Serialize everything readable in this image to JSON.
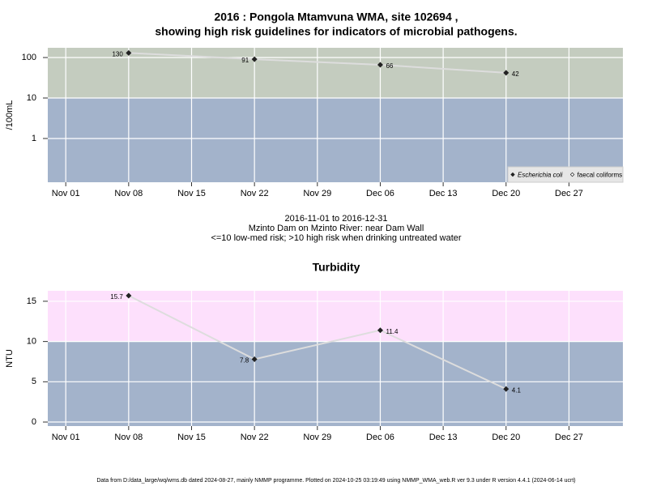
{
  "chart_data": [
    {
      "type": "line",
      "log_scale": true,
      "title": [
        "2016 : Pongola Mtamvuna WMA, site 102694 ,",
        "showing high risk guidelines for indicators of microbial pathogens."
      ],
      "ylabel": "/100mL",
      "subtitle": [
        "2016-11-01 to 2016-12-31",
        "Mzinto Dam on Mzinto River: near Dam Wall",
        "<=10 low-med risk; >10 high risk when drinking untreated water"
      ],
      "x": [
        "2016-11-08",
        "2016-11-22",
        "2016-12-06",
        "2016-12-20"
      ],
      "series": [
        {
          "name": "Escherichia coli",
          "color": "#222222",
          "values": [
            130,
            91,
            66,
            42
          ]
        },
        {
          "name": "faecal coliforms",
          "color": "#222222",
          "values": [
            null,
            null,
            null,
            null
          ]
        }
      ],
      "xlim": [
        "2016-10-30",
        "2017-01-02"
      ],
      "xticks": [
        {
          "value": "2016-11-01",
          "label": "Nov 01"
        },
        {
          "value": "2016-11-08",
          "label": "Nov 08"
        },
        {
          "value": "2016-11-15",
          "label": "Nov 15"
        },
        {
          "value": "2016-11-22",
          "label": "Nov 22"
        },
        {
          "value": "2016-11-29",
          "label": "Nov 29"
        },
        {
          "value": "2016-12-06",
          "label": "Dec 06"
        },
        {
          "value": "2016-12-13",
          "label": "Dec 13"
        },
        {
          "value": "2016-12-20",
          "label": "Dec 20"
        },
        {
          "value": "2016-12-27",
          "label": "Dec 27"
        }
      ],
      "ylim": [
        0.083,
        174
      ],
      "yticks": [
        1,
        10,
        100
      ],
      "threshold": 10,
      "above_color": "#c4ccbf",
      "below_color": "#a3b3cb",
      "line_color": "#dddddd",
      "grid": true,
      "legend": "bottom-right"
    },
    {
      "type": "line",
      "log_scale": false,
      "title": [
        "Turbidity"
      ],
      "ylabel": "NTU",
      "x": [
        "2016-11-08",
        "2016-11-22",
        "2016-12-06",
        "2016-12-20"
      ],
      "series": [
        {
          "name": "Turbidity",
          "color": "#222222",
          "values": [
            15.7,
            7.8,
            11.4,
            4.1
          ]
        }
      ],
      "xlim": [
        "2016-10-30",
        "2017-01-02"
      ],
      "xticks": [
        {
          "value": "2016-11-01",
          "label": "Nov 01"
        },
        {
          "value": "2016-11-08",
          "label": "Nov 08"
        },
        {
          "value": "2016-11-15",
          "label": "Nov 15"
        },
        {
          "value": "2016-11-22",
          "label": "Nov 22"
        },
        {
          "value": "2016-11-29",
          "label": "Nov 29"
        },
        {
          "value": "2016-12-06",
          "label": "Dec 06"
        },
        {
          "value": "2016-12-13",
          "label": "Dec 13"
        },
        {
          "value": "2016-12-20",
          "label": "Dec 20"
        },
        {
          "value": "2016-12-27",
          "label": "Dec 27"
        }
      ],
      "ylim": [
        -0.5,
        16.3
      ],
      "yticks": [
        0,
        5,
        10,
        15
      ],
      "threshold": 10,
      "above_color": "#fde0fc",
      "below_color": "#a3b3cb",
      "line_color": "#dddddd",
      "grid": true
    }
  ],
  "footer": "Data from D:/data_large/wq/wms.db dated 2024-08-27, mainly NMMP programme. Plotted on 2024-10-25 03:19:49 using NMMP_WMA_web.R ver 9.3 under R version 4.4.1 (2024-06-14 ucrt)"
}
